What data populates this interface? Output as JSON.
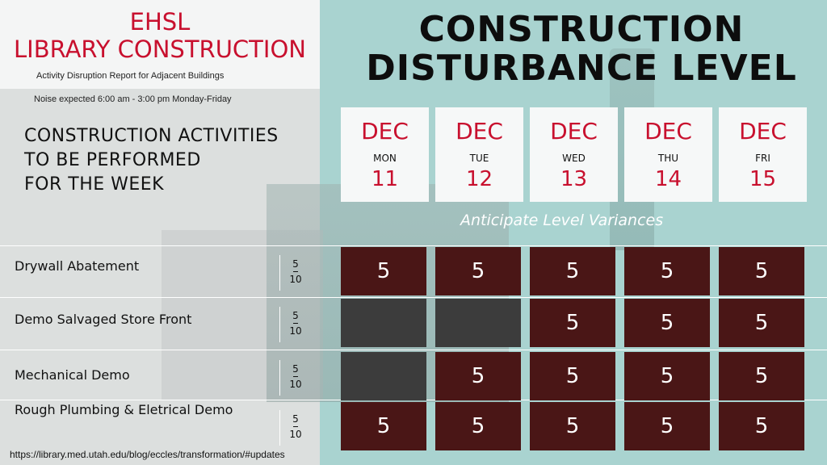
{
  "header": {
    "org_line1": "EHSL",
    "org_line2": "LIBRARY CONSTRUCTION",
    "subtitle": "Activity Disruption Report for Adjacent Buildings",
    "noise_note": "Noise expected 6:00 am - 3:00 pm Monday-Friday"
  },
  "title": {
    "line1": "CONSTRUCTION",
    "line2": "DISTURBANCE LEVEL"
  },
  "activities_heading": {
    "line1": "CONSTRUCTION ACTIVITIES",
    "line2": "TO BE PERFORMED",
    "line3": "FOR THE WEEK"
  },
  "days": [
    {
      "month": "DEC",
      "weekday": "MON",
      "date": "11"
    },
    {
      "month": "DEC",
      "weekday": "TUE",
      "date": "12"
    },
    {
      "month": "DEC",
      "weekday": "WED",
      "date": "13"
    },
    {
      "month": "DEC",
      "weekday": "THU",
      "date": "14"
    },
    {
      "month": "DEC",
      "weekday": "FRI",
      "date": "15"
    }
  ],
  "variance_note": "Anticipate Level Variances",
  "activities": [
    {
      "name": "Drywall Abatement",
      "scale_top": "5",
      "scale_bottom": "10",
      "levels": [
        "5",
        "5",
        "5",
        "5",
        "5"
      ]
    },
    {
      "name": "Demo Salvaged Store Front",
      "scale_top": "5",
      "scale_bottom": "10",
      "levels": [
        null,
        null,
        "5",
        "5",
        "5"
      ]
    },
    {
      "name": "Mechanical Demo",
      "scale_top": "5",
      "scale_bottom": "10",
      "levels": [
        null,
        "5",
        "5",
        "5",
        "5"
      ]
    },
    {
      "name": "Rough Plumbing & Eletrical Demo",
      "scale_top": "5",
      "scale_bottom": "10",
      "levels": [
        "5",
        "5",
        "5",
        "5",
        "5"
      ]
    }
  ],
  "footer": {
    "url": "https://library.med.utah.edu/blog/eccles/transformation/#updates"
  },
  "colors": {
    "brand_red": "#c8102e",
    "active_cell": "#4a1616",
    "inactive_cell": "#3c3c3c",
    "teal_panel": "#a9d3d0"
  }
}
